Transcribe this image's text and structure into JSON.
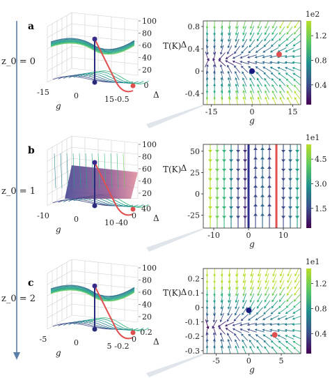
{
  "z0_labels": [
    "z_0 = 0",
    "z_0 = 1",
    "z_0 = 2"
  ],
  "chart_data": [
    {
      "panel": "a",
      "type": "3d-surface",
      "z0": 0,
      "zlabel": "T(K)",
      "xlabel": "g",
      "ylabel": "Δ",
      "x_ticks": [
        -15,
        0,
        15
      ],
      "y_ticks": [
        -0.5,
        0.0
      ],
      "z_ticks": [
        20,
        40,
        60,
        80,
        100
      ]
    },
    {
      "panel": "a",
      "type": "streamplot",
      "xlabel": "g",
      "ylabel": "Δ",
      "x_ticks": [
        -15,
        0,
        15
      ],
      "y_ticks": [
        -0.4,
        0.0,
        0.4,
        0.8
      ],
      "xlim": [
        -18,
        18
      ],
      "ylim": [
        -0.6,
        0.9
      ],
      "fixed_points": [
        {
          "g": 0,
          "delta": 0.0,
          "color": "#1a1a80"
        },
        {
          "g": 10,
          "delta": 0.3,
          "color": "#e05050"
        }
      ],
      "colorbar": {
        "ticks": [
          0.4,
          0.8,
          1.2
        ],
        "multiplier": "1e2"
      }
    },
    {
      "panel": "b",
      "type": "3d-surface",
      "z0": 1,
      "zlabel": "T(K)",
      "xlabel": "g",
      "ylabel": "Δ",
      "x_ticks": [
        -10,
        0,
        10
      ],
      "y_ticks": [
        -40,
        0,
        40
      ],
      "z_ticks": [
        20,
        40,
        60,
        80,
        100
      ]
    },
    {
      "panel": "b",
      "type": "streamplot",
      "xlabel": "g",
      "ylabel": "Δ",
      "x_ticks": [
        -10,
        0,
        10
      ],
      "y_ticks": [
        -25,
        0,
        25,
        50
      ],
      "xlim": [
        -13,
        15
      ],
      "ylim": [
        -40,
        58
      ],
      "nullclines": [
        {
          "g": 0,
          "color": "#2c2c8c"
        },
        {
          "g": 8,
          "color": "#e05050"
        }
      ],
      "colorbar": {
        "ticks": [
          1.5,
          3.0,
          4.5
        ],
        "multiplier": "1e1"
      }
    },
    {
      "panel": "c",
      "type": "3d-surface",
      "z0": 2,
      "zlabel": "T(K)",
      "xlabel": "g",
      "ylabel": "Δ",
      "x_ticks": [
        -5,
        0,
        5
      ],
      "y_ticks": [
        -0.2,
        0.0,
        0.2
      ],
      "z_ticks": [
        20,
        40,
        60,
        80,
        100
      ]
    },
    {
      "panel": "c",
      "type": "streamplot",
      "xlabel": "g",
      "ylabel": "Δ",
      "x_ticks": [
        -5,
        0,
        5
      ],
      "y_ticks": [
        -0.3,
        -0.2,
        -0.1,
        0.0,
        0.1,
        0.2
      ],
      "xlim": [
        -7,
        8
      ],
      "ylim": [
        -0.32,
        0.27
      ],
      "fixed_points": [
        {
          "g": 0,
          "delta": -0.02,
          "color": "#1a1a80"
        },
        {
          "g": 4,
          "delta": -0.19,
          "color": "#e05050"
        }
      ],
      "colorbar": {
        "ticks": [
          0.4,
          0.8,
          1.2
        ],
        "multiplier": "1e1"
      }
    }
  ]
}
